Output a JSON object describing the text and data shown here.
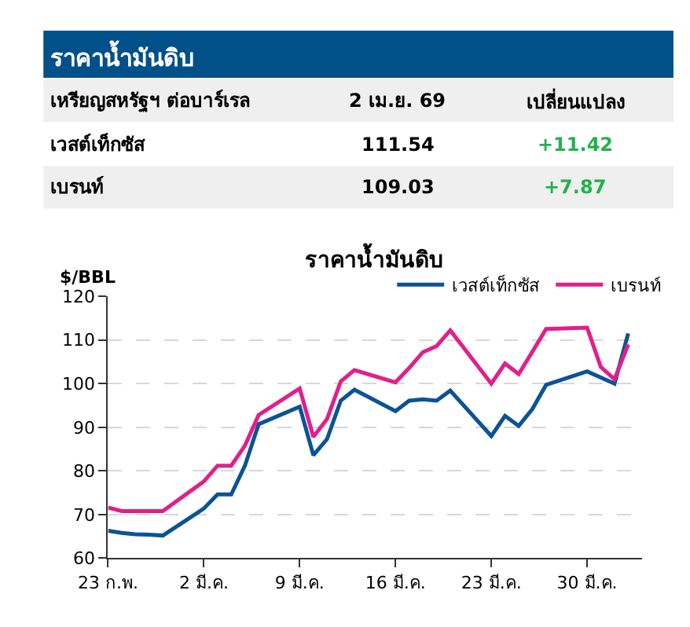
{
  "chart_data": [
    {
      "type": "other",
      "title": "ราคาน้ำมันดิบ",
      "categories": [
        "เหรียญสหรัฐฯ ต่อบาร์เรล",
        "2 เม.ย. 69",
        "เปลี่ยนแปลง"
      ],
      "annotations": [
        "เวสต์เท็กซัส",
        "111.54",
        "+11.42",
        "เบรนท์",
        "109.03",
        "+7.87"
      ]
    },
    {
      "type": "line",
      "title": "ราคาน้ำมันดิบ",
      "ylabel": "$/BBL",
      "x": [
        "--02-23",
        "--02-24",
        "--02-25",
        "--02-26",
        "--02-27",
        "--03-02",
        "--03-03",
        "--03-04",
        "--03-05",
        "--03-06",
        "--03-09",
        "--03-10",
        "--03-11",
        "--03-12",
        "--03-13",
        "--03-16",
        "--03-17",
        "--03-18",
        "--03-19",
        "--03-20",
        "--03-23",
        "--03-24",
        "--03-25",
        "--03-26",
        "--03-27",
        "--03-30",
        "--03-31",
        "--04-01",
        "--04-02"
      ],
      "series": [
        {
          "name": "เวสต์เท็กซัส",
          "color": "#0b5394",
          "values": [
            66.3,
            65.8,
            65.5,
            65.4,
            65.2,
            71.4,
            74.6,
            74.6,
            81.2,
            90.7,
            94.7,
            83.6,
            87.3,
            96.1,
            98.6,
            93.7,
            96.1,
            96.4,
            96.1,
            98.4,
            88.0,
            92.6,
            90.3,
            94.2,
            99.7,
            102.8,
            101.4,
            100.0,
            111.5
          ]
        },
        {
          "name": "เบรนท์",
          "color": "#e0208a",
          "values": [
            71.6,
            70.8,
            70.8,
            70.8,
            70.8,
            77.6,
            81.2,
            81.2,
            85.8,
            92.8,
            98.9,
            87.8,
            91.9,
            100.5,
            103.1,
            100.3,
            103.6,
            107.2,
            108.6,
            112.2,
            100.0,
            104.6,
            102.2,
            107.3,
            112.5,
            112.8,
            103.8,
            101.0,
            109.0
          ]
        }
      ],
      "xlim": [
        "--02-23",
        "--04-03"
      ],
      "xticks": [
        {
          "value": "--02-23",
          "label": "23 ก.พ."
        },
        {
          "value": "--03-02",
          "label": "2 มี.ค."
        },
        {
          "value": "--03-09",
          "label": "9 มี.ค."
        },
        {
          "value": "--03-16",
          "label": "16 มี.ค."
        },
        {
          "value": "--03-23",
          "label": "23 มี.ค."
        },
        {
          "value": "--03-30",
          "label": "30 มี.ค."
        }
      ],
      "ylim": [
        60,
        120
      ],
      "yticks": [
        60,
        70,
        80,
        90,
        100,
        110,
        120
      ],
      "grid": "y",
      "legend": "top right",
      "marker": "none",
      "line_style": "solid"
    }
  ]
}
